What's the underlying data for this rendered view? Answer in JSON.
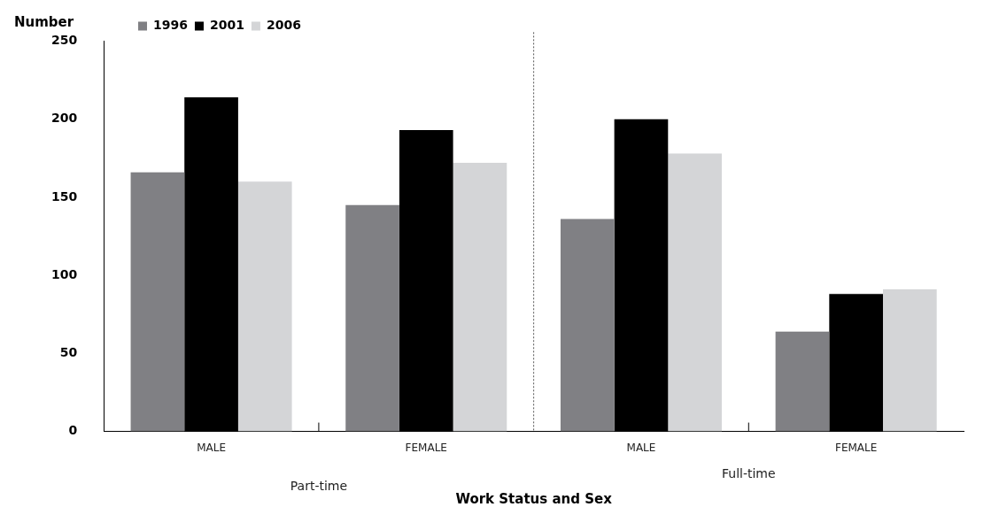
{
  "chart_data": {
    "type": "bar",
    "ylabel": "Number",
    "xlabel": "Work Status and Sex",
    "categories": [
      "MALE",
      "FEMALE",
      "MALE",
      "FEMALE"
    ],
    "series": [
      {
        "name": "1996",
        "color": "#808084",
        "values": [
          166,
          145,
          136,
          64
        ]
      },
      {
        "name": "2001",
        "color": "#000000",
        "values": [
          214,
          193,
          200,
          88
        ]
      },
      {
        "name": "2006",
        "color": "#d4d5d7",
        "values": [
          160,
          172,
          178,
          91
        ]
      }
    ],
    "ylim": [
      0,
      250
    ],
    "yticks": [
      0,
      50,
      100,
      150,
      200,
      250
    ],
    "grid": false,
    "legend": "top left",
    "annotations": [
      "Part-time",
      "Full-time"
    ]
  }
}
